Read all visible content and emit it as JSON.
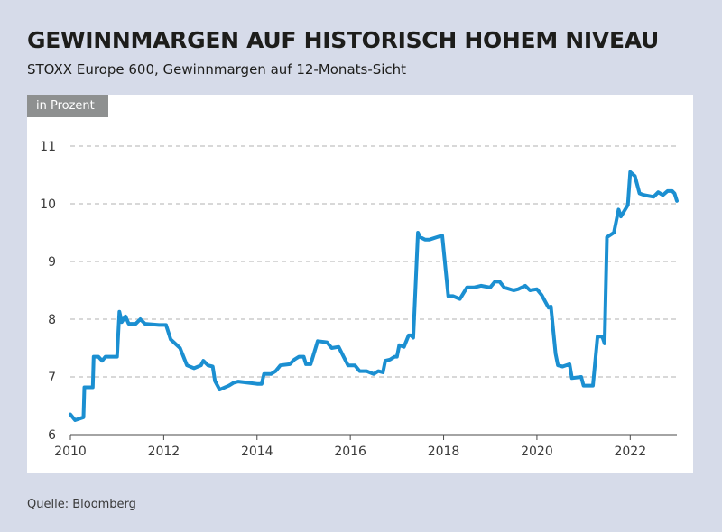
{
  "title": "GEWINNMARGEN AUF HISTORISCH HOHEM NIVEAU",
  "subtitle": "STOXX Europe 600, Gewinnmargen auf 12-Monats-Sicht",
  "unit_label": "in Prozent",
  "source": "Quelle: Bloomberg",
  "colors": {
    "line": "#1b8fd1",
    "grid": "#b0b0b0",
    "background": "#d6dbe9",
    "panel": "#ffffff"
  },
  "chart_data": {
    "type": "line",
    "xlabel": "",
    "ylabel": "",
    "xlim": [
      2010,
      2023
    ],
    "ylim": [
      6,
      11
    ],
    "x_ticks": [
      "2010",
      "2012",
      "2014",
      "2016",
      "2018",
      "2020",
      "2022"
    ],
    "y_ticks": [
      "6",
      "7",
      "8",
      "9",
      "10",
      "11"
    ],
    "grid": "horizontal dashed",
    "series": [
      {
        "name": "",
        "x": [
          2010.0,
          2010.1,
          2010.28,
          2010.3,
          2010.48,
          2010.5,
          2010.6,
          2010.68,
          2010.75,
          2010.85,
          2011.0,
          2011.05,
          2011.1,
          2011.18,
          2011.25,
          2011.4,
          2011.5,
          2011.6,
          2011.9,
          2012.05,
          2012.15,
          2012.35,
          2012.5,
          2012.65,
          2012.8,
          2012.85,
          2012.95,
          2013.05,
          2013.1,
          2013.2,
          2013.4,
          2013.5,
          2013.6,
          2013.8,
          2014.0,
          2014.1,
          2014.15,
          2014.3,
          2014.4,
          2014.5,
          2014.7,
          2014.8,
          2014.9,
          2015.0,
          2015.05,
          2015.15,
          2015.3,
          2015.5,
          2015.6,
          2015.75,
          2015.95,
          2016.1,
          2016.2,
          2016.35,
          2016.5,
          2016.6,
          2016.7,
          2016.75,
          2016.85,
          2016.95,
          2017.0,
          2017.05,
          2017.15,
          2017.25,
          2017.3,
          2017.35,
          2017.45,
          2017.5,
          2017.6,
          2017.7,
          2017.85,
          2017.97,
          2018.1,
          2018.2,
          2018.35,
          2018.5,
          2018.65,
          2018.8,
          2019.0,
          2019.1,
          2019.2,
          2019.3,
          2019.5,
          2019.6,
          2019.75,
          2019.85,
          2020.0,
          2020.1,
          2020.25,
          2020.3,
          2020.4,
          2020.45,
          2020.55,
          2020.7,
          2020.75,
          2020.95,
          2021.0,
          2021.1,
          2021.2,
          2021.3,
          2021.4,
          2021.45,
          2021.5,
          2021.65,
          2021.75,
          2021.8,
          2021.95,
          2022.0,
          2022.1,
          2022.2,
          2022.3,
          2022.5,
          2022.6,
          2022.7,
          2022.8,
          2022.9,
          2022.95,
          2023.0
        ],
        "values": [
          6.35,
          6.25,
          6.3,
          6.82,
          6.82,
          7.35,
          7.35,
          7.28,
          7.35,
          7.35,
          7.35,
          8.13,
          7.95,
          8.05,
          7.92,
          7.92,
          8.0,
          7.92,
          7.9,
          7.9,
          7.65,
          7.5,
          7.2,
          7.15,
          7.2,
          7.28,
          7.2,
          7.18,
          6.93,
          6.78,
          6.85,
          6.9,
          6.92,
          6.9,
          6.88,
          6.88,
          7.05,
          7.05,
          7.1,
          7.2,
          7.22,
          7.3,
          7.35,
          7.35,
          7.22,
          7.22,
          7.62,
          7.6,
          7.5,
          7.52,
          7.2,
          7.2,
          7.1,
          7.1,
          7.05,
          7.1,
          7.08,
          7.28,
          7.3,
          7.35,
          7.35,
          7.55,
          7.52,
          7.72,
          7.72,
          7.68,
          9.5,
          9.42,
          9.38,
          9.38,
          9.42,
          9.45,
          8.4,
          8.4,
          8.35,
          8.55,
          8.55,
          8.58,
          8.55,
          8.65,
          8.65,
          8.55,
          8.5,
          8.52,
          8.58,
          8.5,
          8.52,
          8.42,
          8.2,
          8.22,
          7.4,
          7.2,
          7.18,
          7.22,
          6.98,
          7.0,
          6.85,
          6.85,
          6.85,
          7.7,
          7.7,
          7.58,
          9.42,
          9.5,
          9.9,
          9.78,
          9.98,
          10.55,
          10.48,
          10.18,
          10.15,
          10.12,
          10.2,
          10.15,
          10.22,
          10.22,
          10.18,
          10.05
        ]
      }
    ]
  }
}
